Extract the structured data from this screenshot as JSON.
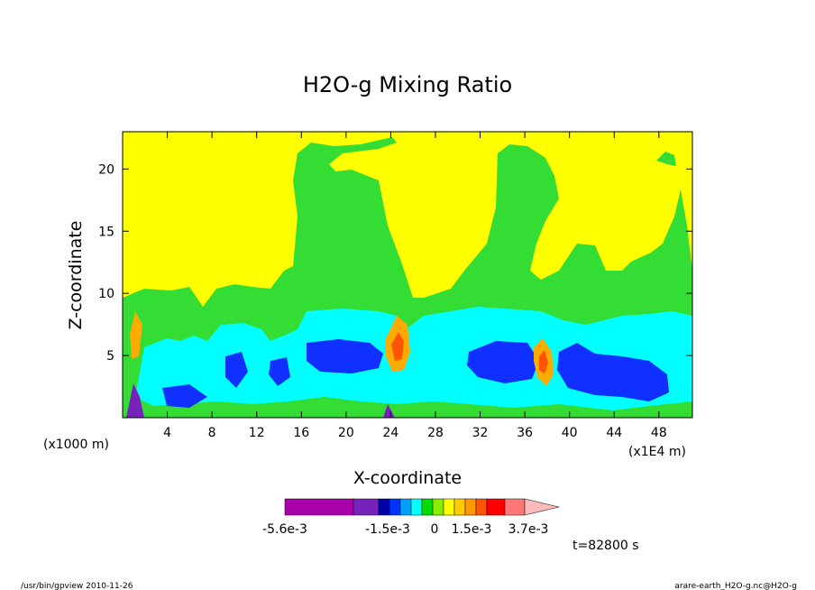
{
  "chart_data": {
    "type": "heatmap",
    "title": "H2O-g Mixing Ratio",
    "xlabel": "X-coordinate",
    "ylabel": "Z-coordinate",
    "x_unit_note": "(x1E4 m)",
    "y_unit_note": "(x1000 m)",
    "x_ticks": [
      4,
      8,
      12,
      16,
      20,
      24,
      28,
      32,
      36,
      40,
      44,
      48
    ],
    "y_ticks": [
      5,
      10,
      15,
      20
    ],
    "xlim": [
      0,
      51
    ],
    "ylim": [
      0,
      23
    ],
    "time_label": "t=82800 s",
    "colorbar": {
      "labels": [
        "-5.6e-3",
        "-1.5e-3",
        "0",
        "1.5e-3",
        "3.7e-3"
      ],
      "colors": [
        "#aa00aa",
        "#7722bb",
        "#0000aa",
        "#0033ff",
        "#00a0ff",
        "#00ffff",
        "#00dd00",
        "#88ee00",
        "#ffff00",
        "#ffcc00",
        "#ff9900",
        "#ff5500",
        "#ff0000",
        "#ff7777",
        "#ffbbbb"
      ]
    },
    "background_level_color": "#ffff00",
    "regions": [
      {
        "level": "green",
        "color": "#33dd33"
      },
      {
        "level": "cyan",
        "color": "#00ffff"
      },
      {
        "level": "blue",
        "color": "#1030ff"
      },
      {
        "level": "orange",
        "color": "#ffaa00"
      }
    ]
  },
  "footer": {
    "left": "/usr/bin/gpview  2010-11-26",
    "right": "arare-earth_H2O-g.nc@H2O-g"
  }
}
